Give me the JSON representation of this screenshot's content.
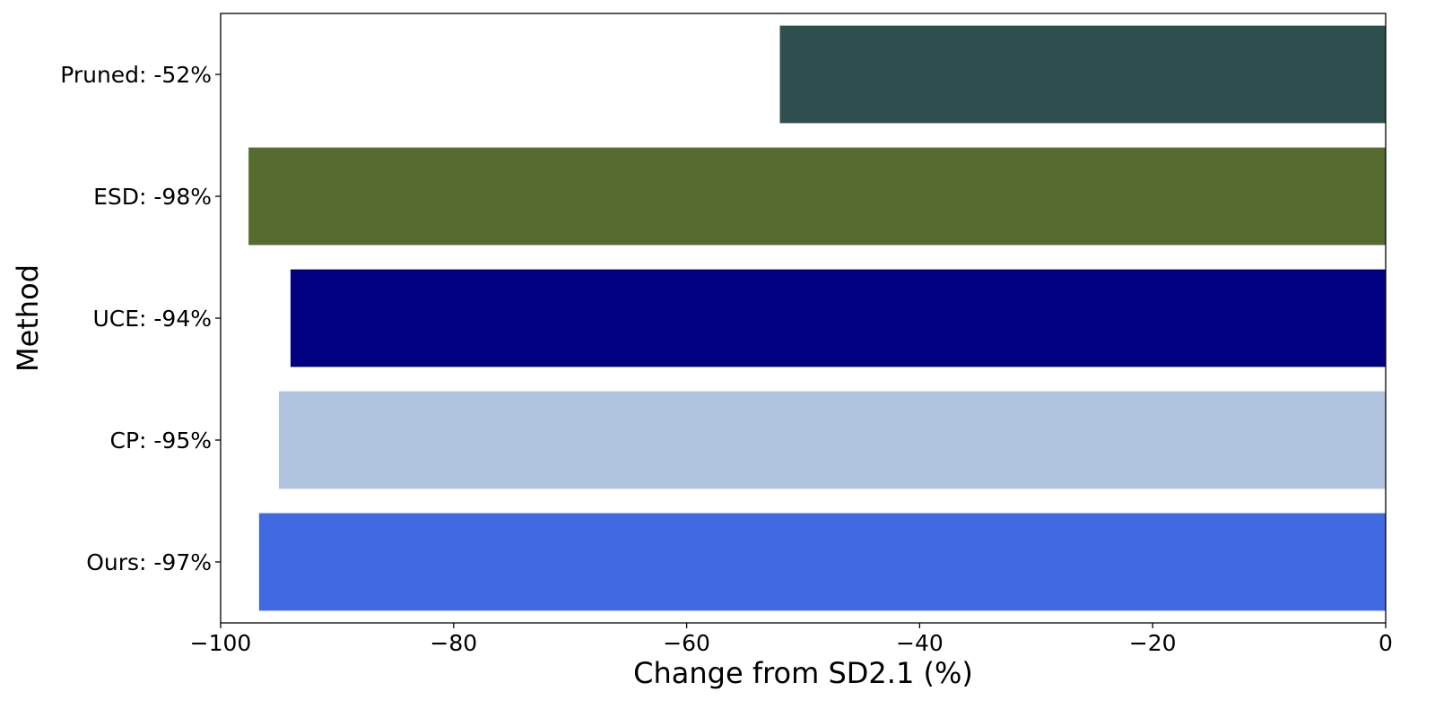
{
  "chart_data": {
    "type": "bar",
    "orientation": "horizontal",
    "title": "",
    "xlabel": "Change from SD2.1 (%)",
    "ylabel": "Method",
    "xlim": [
      -100,
      0
    ],
    "x_ticks": [
      "−100",
      "−80",
      "−60",
      "−40",
      "−20",
      "0"
    ],
    "x_tick_values": [
      -100,
      -80,
      -60,
      -40,
      -20,
      0
    ],
    "grid": false,
    "categories": [
      "Pruned: -52%",
      "ESD: -98%",
      "UCE: -94%",
      "CP: -95%",
      "Ours: -97%"
    ],
    "values": [
      -52,
      -97.6,
      -94,
      -95,
      -96.7
    ],
    "colors": [
      "#2f4f4f",
      "#556b2f",
      "#000080",
      "#b0c4de",
      "#4169e1"
    ]
  }
}
